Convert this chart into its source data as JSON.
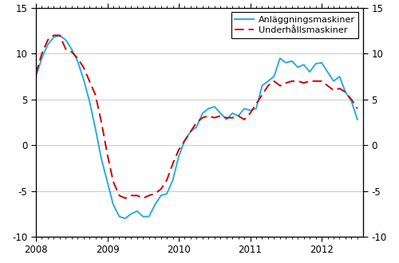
{
  "anlaggering_label": "Anläggningsmaskiner",
  "underh_label": "Underhållsmaskiner",
  "line1_color": "#29ABE2",
  "line2_color": "#CC0000",
  "ylim": [
    -10,
    15
  ],
  "yticks": [
    -10,
    -5,
    0,
    5,
    10,
    15
  ],
  "grid_color": "#c8c8c8",
  "x_numeric": [
    2008.0,
    2008.083,
    2008.167,
    2008.25,
    2008.333,
    2008.417,
    2008.5,
    2008.583,
    2008.667,
    2008.75,
    2008.833,
    2008.917,
    2009.0,
    2009.083,
    2009.167,
    2009.25,
    2009.333,
    2009.417,
    2009.5,
    2009.583,
    2009.667,
    2009.75,
    2009.833,
    2009.917,
    2010.0,
    2010.083,
    2010.167,
    2010.25,
    2010.333,
    2010.417,
    2010.5,
    2010.583,
    2010.667,
    2010.75,
    2010.833,
    2010.917,
    2011.0,
    2011.083,
    2011.167,
    2011.25,
    2011.333,
    2011.417,
    2011.5,
    2011.583,
    2011.667,
    2011.75,
    2011.833,
    2011.917,
    2012.0,
    2012.083,
    2012.167,
    2012.25,
    2012.333,
    2012.417,
    2012.5
  ],
  "series1": [
    7.5,
    9.5,
    11.0,
    11.8,
    12.0,
    11.5,
    10.5,
    9.2,
    7.2,
    4.8,
    1.8,
    -1.5,
    -4.0,
    -6.5,
    -7.8,
    -8.0,
    -7.5,
    -7.2,
    -7.8,
    -7.8,
    -6.5,
    -5.5,
    -5.3,
    -3.8,
    -1.2,
    0.5,
    1.5,
    2.0,
    3.5,
    4.0,
    4.2,
    3.5,
    2.8,
    3.5,
    3.2,
    4.0,
    3.8,
    4.0,
    6.5,
    7.0,
    7.5,
    9.5,
    9.0,
    9.2,
    8.5,
    8.8,
    8.0,
    8.9,
    9.0,
    8.0,
    7.0,
    7.5,
    5.8,
    4.8,
    2.8
  ],
  "series2": [
    7.8,
    10.0,
    11.5,
    12.0,
    12.0,
    10.5,
    10.2,
    9.5,
    8.5,
    7.0,
    5.5,
    2.5,
    -1.0,
    -4.0,
    -5.5,
    -5.8,
    -5.5,
    -5.5,
    -5.8,
    -5.5,
    -5.3,
    -4.8,
    -3.8,
    -2.0,
    -0.5,
    0.5,
    1.5,
    2.5,
    3.0,
    3.2,
    3.0,
    3.2,
    3.0,
    3.0,
    3.2,
    2.8,
    3.5,
    4.5,
    5.5,
    6.5,
    7.0,
    6.5,
    6.8,
    7.0,
    7.0,
    6.8,
    7.0,
    7.0,
    7.0,
    6.5,
    6.0,
    6.2,
    5.8,
    5.0,
    4.0
  ],
  "xticks": [
    2008,
    2009,
    2010,
    2011,
    2012
  ],
  "xlim": [
    2008.0,
    2012.58
  ]
}
